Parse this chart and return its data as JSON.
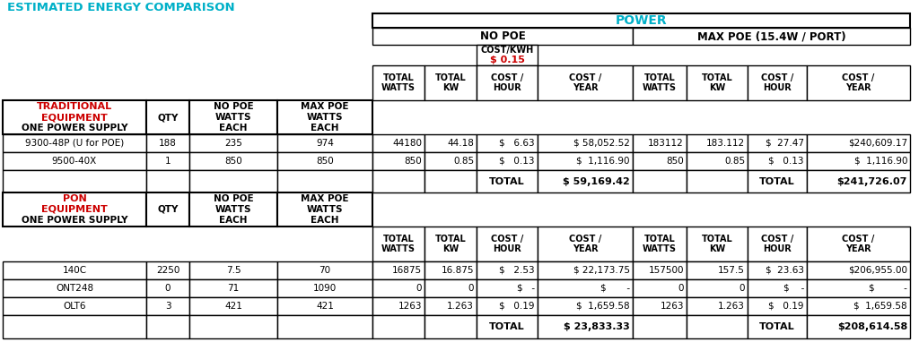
{
  "title": "ESTIMATED ENERGY COMPARISON",
  "power_header": "POWER",
  "no_poe_header": "NO POE",
  "max_poe_header": "MAX POE (15.4W / PORT)",
  "cost_kwh_label": "COST/KWH",
  "cost_kwh_value": "$ 0.15",
  "trad_label1": "TRADITIONAL",
  "trad_label2": "EQUIPMENT",
  "trad_label3": "ONE POWER SUPPLY",
  "pon_label1": "PON",
  "pon_label2": "EQUIPMENT",
  "pon_label3": "ONE POWER SUPPLY",
  "qty_header": "QTY",
  "no_poe_watts_header": "NO POE\nWATTS\nEACH",
  "max_poe_watts_header": "MAX POE\nWATTS\nEACH",
  "col_power_headers": [
    "TOTAL\nWATTS",
    "TOTAL\nKW",
    "COST /\nHOUR",
    "COST /\nYEAR"
  ],
  "trad_rows": [
    [
      "9300-48P (U for POE)",
      "188",
      "235",
      "974",
      "44180",
      "44.18",
      "$   6.63",
      "$ 58,052.52",
      "183112",
      "183.112",
      "$  27.47",
      "$240,609.17"
    ],
    [
      "9500-40X",
      "1",
      "850",
      "850",
      "850",
      "0.85",
      "$   0.13",
      "$  1,116.90",
      "850",
      "0.85",
      "$   0.13",
      "$  1,116.90"
    ]
  ],
  "trad_total_nopoe": "$ 59,169.42",
  "trad_total_maxpoe": "$241,726.07",
  "pon_rows": [
    [
      "140C",
      "2250",
      "7.5",
      "70",
      "16875",
      "16.875",
      "$   2.53",
      "$ 22,173.75",
      "157500",
      "157.5",
      "$  23.63",
      "$206,955.00"
    ],
    [
      "ONT248",
      "0",
      "71",
      "1090",
      "0",
      "0",
      "$   -",
      "$       -",
      "0",
      "0",
      "$    -",
      "$          -"
    ],
    [
      "OLT6",
      "3",
      "421",
      "421",
      "1263",
      "1.263",
      "$   0.19",
      "$  1,659.58",
      "1263",
      "1.263",
      "$   0.19",
      "$  1,659.58"
    ]
  ],
  "pon_total_nopoe": "$ 23,833.33",
  "pon_total_maxpoe": "$208,614.58",
  "bg_color": "#ffffff",
  "cyan_color": "#00b0c8",
  "red_color": "#cc0000",
  "black_color": "#000000"
}
